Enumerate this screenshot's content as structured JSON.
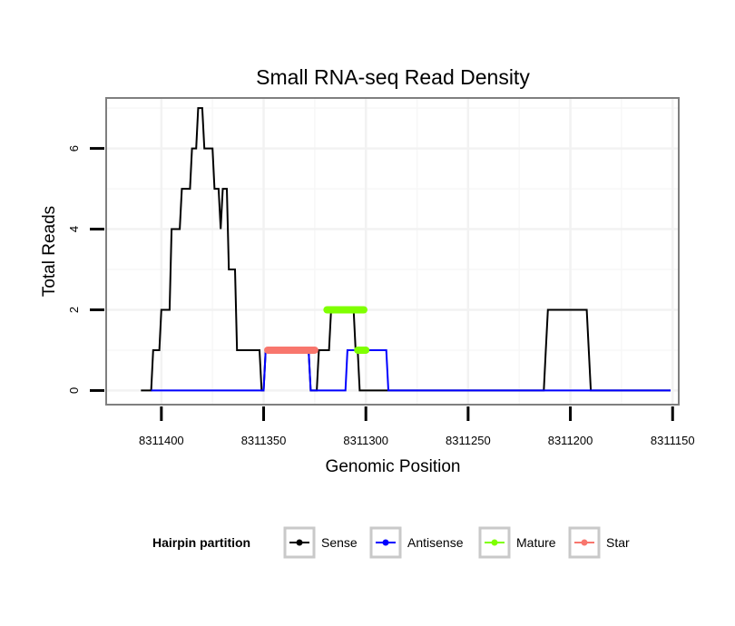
{
  "chart_data": {
    "type": "line",
    "title": "Small RNA-seq Read Density",
    "xlabel": "Genomic Position",
    "ylabel": "Total Reads",
    "x_reversed": true,
    "xlim": [
      8311427,
      8311147
    ],
    "ylim": [
      -0.35,
      7.25
    ],
    "xticks": [
      8311400,
      8311350,
      8311300,
      8311250,
      8311200,
      8311150
    ],
    "xtick_labels": [
      "8311400",
      "8311350",
      "8311300",
      "8311250",
      "8311200",
      "8311150"
    ],
    "yticks": [
      0,
      2,
      4,
      6
    ],
    "ytick_labels": [
      "0",
      "2",
      "4",
      "6"
    ],
    "grid": true,
    "legend": {
      "title": "Hairpin partition",
      "position": "bottom",
      "entries": [
        "Sense",
        "Antisense",
        "Mature",
        "Star"
      ]
    },
    "series": [
      {
        "name": "Sense",
        "color": "#000000",
        "kind": "line",
        "points": [
          [
            8311410,
            0
          ],
          [
            8311405,
            0
          ],
          [
            8311404,
            1
          ],
          [
            8311401,
            1
          ],
          [
            8311400,
            2
          ],
          [
            8311396,
            2
          ],
          [
            8311395,
            4
          ],
          [
            8311391,
            4
          ],
          [
            8311390,
            5
          ],
          [
            8311386,
            5
          ],
          [
            8311385,
            6
          ],
          [
            8311383,
            6
          ],
          [
            8311382,
            7
          ],
          [
            8311380,
            7
          ],
          [
            8311379,
            6
          ],
          [
            8311375,
            6
          ],
          [
            8311374,
            5
          ],
          [
            8311372,
            5
          ],
          [
            8311371,
            4
          ],
          [
            8311370,
            5
          ],
          [
            8311368,
            5
          ],
          [
            8311367,
            3
          ],
          [
            8311364,
            3
          ],
          [
            8311363,
            1
          ],
          [
            8311352,
            1
          ],
          [
            8311351,
            0
          ],
          [
            8311350,
            0
          ],
          [
            8311349,
            1
          ],
          [
            8311328,
            1
          ],
          [
            8311327,
            0
          ],
          [
            8311324,
            0
          ],
          [
            8311323,
            1
          ],
          [
            8311318,
            1
          ],
          [
            8311317,
            2
          ],
          [
            8311306,
            2
          ],
          [
            8311305,
            1
          ],
          [
            8311304,
            1
          ],
          [
            8311303,
            0
          ],
          [
            8311213,
            0
          ],
          [
            8311212,
            1
          ],
          [
            8311211,
            2
          ],
          [
            8311192,
            2
          ],
          [
            8311190,
            0
          ],
          [
            8311151,
            0
          ]
        ]
      },
      {
        "name": "Antisense",
        "color": "#0000ff",
        "kind": "line",
        "points": [
          [
            8311405,
            0
          ],
          [
            8311350,
            0
          ],
          [
            8311349,
            1
          ],
          [
            8311328,
            1
          ],
          [
            8311327,
            0
          ],
          [
            8311310,
            0
          ],
          [
            8311309,
            1
          ],
          [
            8311290,
            1
          ],
          [
            8311289,
            0
          ],
          [
            8311151,
            0
          ]
        ]
      },
      {
        "name": "Mature",
        "color": "#7fff00",
        "kind": "segment",
        "segments": [
          [
            8311319,
            8311301,
            2
          ],
          [
            8311304,
            8311300,
            1
          ]
        ]
      },
      {
        "name": "Star",
        "color": "#f8766d",
        "kind": "segment",
        "segments": [
          [
            8311348,
            8311325,
            1
          ]
        ]
      }
    ]
  }
}
